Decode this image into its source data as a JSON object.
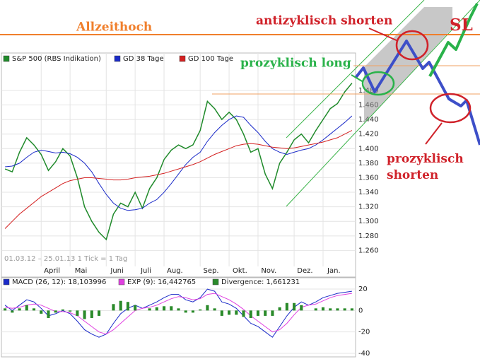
{
  "chart_data": [
    {
      "type": "line",
      "footnote": "01.03.12 – 25.01.13   1 Tick = 1 Tag",
      "categories": [
        null,
        null,
        null,
        null,
        null,
        "April",
        null,
        null,
        null,
        "Mai",
        null,
        null,
        null,
        null,
        "Juni",
        null,
        null,
        null,
        "Juli",
        null,
        null,
        null,
        "Aug.",
        null,
        null,
        null,
        null,
        "Sep.",
        null,
        null,
        null,
        "Okt.",
        null,
        null,
        null,
        "Nov.",
        null,
        null,
        null,
        null,
        "Dez.",
        null,
        null,
        null,
        "Jan.",
        null,
        null,
        null,
        null
      ],
      "ylim": [
        1240,
        1512
      ],
      "yticks": [
        {
          "value": 1260,
          "label": "1.260"
        },
        {
          "value": 1280,
          "label": "1.280"
        },
        {
          "value": 1300,
          "label": "1.300"
        },
        {
          "value": 1320,
          "label": "1.320"
        },
        {
          "value": 1340,
          "label": "1.340"
        },
        {
          "value": 1360,
          "label": "1.360"
        },
        {
          "value": 1380,
          "label": "1.380"
        },
        {
          "value": 1400,
          "label": "1.400"
        },
        {
          "value": 1420,
          "label": "1.420"
        },
        {
          "value": 1440,
          "label": "1.440"
        },
        {
          "value": 1460,
          "label": "1.460"
        },
        {
          "value": 1480,
          "label": "1.480"
        }
      ],
      "grid": true,
      "series": [
        {
          "name": "S&P 500 (RBS Indikation)",
          "color": "#1f8a2a",
          "values": [
            1372,
            1368,
            1395,
            1415,
            1405,
            1392,
            1370,
            1382,
            1400,
            1390,
            1360,
            1320,
            1300,
            1285,
            1275,
            1310,
            1325,
            1320,
            1340,
            1318,
            1345,
            1360,
            1385,
            1398,
            1405,
            1400,
            1405,
            1425,
            1465,
            1455,
            1440,
            1450,
            1440,
            1420,
            1395,
            1400,
            1365,
            1345,
            1380,
            1395,
            1412,
            1420,
            1408,
            1425,
            1440,
            1455,
            1462,
            1478,
            1490
          ]
        },
        {
          "name": "GD 38 Tage",
          "color": "#1a2ac8",
          "values": [
            1375,
            1376,
            1380,
            1388,
            1395,
            1398,
            1396,
            1394,
            1395,
            1393,
            1388,
            1380,
            1368,
            1352,
            1337,
            1325,
            1318,
            1315,
            1316,
            1318,
            1325,
            1330,
            1340,
            1352,
            1365,
            1378,
            1388,
            1395,
            1410,
            1422,
            1432,
            1440,
            1445,
            1443,
            1432,
            1422,
            1410,
            1400,
            1395,
            1392,
            1395,
            1398,
            1400,
            1405,
            1412,
            1420,
            1428,
            1436,
            1445
          ]
        },
        {
          "name": "GD 100 Tage",
          "color": "#d42020",
          "values": [
            1290,
            1300,
            1310,
            1318,
            1326,
            1334,
            1340,
            1346,
            1352,
            1356,
            1358,
            1360,
            1360,
            1359,
            1358,
            1357,
            1357,
            1358,
            1360,
            1361,
            1362,
            1364,
            1366,
            1369,
            1372,
            1375,
            1378,
            1382,
            1387,
            1392,
            1396,
            1400,
            1404,
            1406,
            1407,
            1406,
            1404,
            1402,
            1401,
            1400,
            1401,
            1403,
            1405,
            1407,
            1409,
            1412,
            1415,
            1420,
            1425
          ]
        }
      ]
    },
    {
      "type": "line",
      "ylim": [
        -42,
        24
      ],
      "yticks": [
        20,
        0,
        -20,
        -40
      ],
      "grid": true,
      "series": [
        {
          "name": "MACD (26, 12): 18,103996",
          "color": "#1a2ac8",
          "values": [
            5,
            0,
            5,
            10,
            8,
            2,
            -5,
            -3,
            0,
            -3,
            -10,
            -18,
            -22,
            -25,
            -22,
            -12,
            -3,
            2,
            5,
            2,
            5,
            8,
            12,
            15,
            15,
            10,
            8,
            12,
            20,
            18,
            8,
            6,
            2,
            -5,
            -12,
            -15,
            -20,
            -25,
            -15,
            -5,
            3,
            8,
            5,
            8,
            12,
            14,
            16,
            17,
            18
          ]
        },
        {
          "name": "EXP (9): 16,442765",
          "color": "#e040e0",
          "values": [
            3,
            2,
            3,
            5,
            6,
            5,
            2,
            -1,
            -1,
            -2,
            -5,
            -10,
            -15,
            -20,
            -22,
            -18,
            -12,
            -6,
            0,
            2,
            3,
            5,
            8,
            11,
            13,
            12,
            10,
            11,
            15,
            16,
            13,
            10,
            6,
            1,
            -5,
            -10,
            -15,
            -20,
            -18,
            -12,
            -4,
            3,
            5,
            6,
            9,
            12,
            14,
            15,
            16
          ]
        },
        {
          "name": "Divergence: 1,661231",
          "color": "#2a8a2a",
          "type": "bar",
          "values": [
            2,
            -2,
            2,
            5,
            2,
            -3,
            -7,
            -2,
            1,
            -1,
            -5,
            -8,
            -7,
            -5,
            0,
            6,
            9,
            8,
            5,
            0,
            2,
            3,
            4,
            4,
            2,
            -2,
            -2,
            1,
            5,
            2,
            -5,
            -4,
            -4,
            -6,
            -7,
            -5,
            -5,
            -5,
            3,
            7,
            7,
            5,
            0,
            2,
            3,
            2,
            2,
            2,
            2
          ]
        }
      ]
    }
  ],
  "annotations": {
    "high": "Allzeithoch",
    "counter_short": "antizyklisch shorten",
    "stop": "SL",
    "pro_long": "prozyklisch long",
    "pro_short": "prozyklisch shorten"
  }
}
